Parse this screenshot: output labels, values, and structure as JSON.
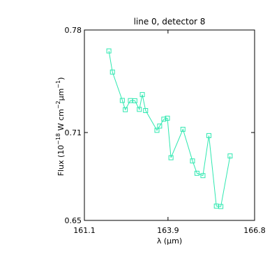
{
  "chart_data": {
    "type": "line",
    "title": "line 0, detector 8",
    "xlabel": "λ (μm)",
    "ylabel_parts": [
      "Flux (10",
      "−18",
      " W cm",
      "−2",
      "μm",
      "−1",
      ")"
    ],
    "xlim": [
      161.1,
      166.8
    ],
    "ylim": [
      0.65,
      0.78
    ],
    "xticks": [
      161.1,
      163.9,
      166.8
    ],
    "xtick_labels": [
      "161.1",
      "163.9",
      "166.8"
    ],
    "yticks": [
      0.65,
      0.71,
      0.78
    ],
    "ytick_labels": [
      "0.65",
      "0.71",
      "0.78"
    ],
    "grid": false,
    "series": [
      {
        "color": "#2ee8b0",
        "marker": "square",
        "x": [
          161.92,
          162.04,
          162.37,
          162.47,
          162.64,
          162.79,
          162.94,
          163.04,
          163.15,
          163.53,
          163.62,
          163.76,
          163.88,
          164.0,
          164.4,
          164.72,
          164.87,
          165.07,
          165.27,
          165.52,
          165.67,
          165.98
        ],
        "y": [
          0.7657,
          0.7513,
          0.7319,
          0.7256,
          0.7318,
          0.7317,
          0.7258,
          0.7359,
          0.725,
          0.7115,
          0.7144,
          0.7191,
          0.7198,
          0.6928,
          0.7122,
          0.6906,
          0.6822,
          0.6806,
          0.7079,
          0.6598,
          0.6595,
          0.694
        ]
      }
    ]
  }
}
